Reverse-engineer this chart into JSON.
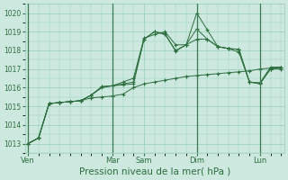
{
  "background_color": "#cce8df",
  "grid_color": "#99ccbb",
  "line_color": "#2d6e3e",
  "xlabel": "Pression niveau de la mer( hPa )",
  "xlabel_fontsize": 7.5,
  "ylim": [
    1012.5,
    1020.5
  ],
  "yticks": [
    1013,
    1014,
    1015,
    1016,
    1017,
    1018,
    1019,
    1020
  ],
  "xtick_labels": [
    "Ven",
    "Mar",
    "Sam",
    "Dim",
    "Lun"
  ],
  "xtick_positions": [
    0,
    8,
    11,
    16,
    22
  ],
  "vline_positions": [
    0,
    8,
    16,
    22
  ],
  "total_points": 25,
  "series": [
    {
      "x": [
        0,
        1,
        2,
        3,
        4,
        5,
        6,
        7,
        8,
        9,
        10,
        11,
        12,
        13,
        14,
        15,
        16,
        17,
        18,
        19,
        20,
        21,
        22,
        23,
        24
      ],
      "y": [
        1013.0,
        1013.3,
        1015.15,
        1015.2,
        1015.25,
        1015.3,
        1015.45,
        1015.5,
        1015.55,
        1015.65,
        1016.0,
        1016.2,
        1016.3,
        1016.4,
        1016.5,
        1016.6,
        1016.65,
        1016.7,
        1016.75,
        1016.8,
        1016.85,
        1016.9,
        1017.0,
        1017.05,
        1017.1
      ]
    },
    {
      "x": [
        0,
        1,
        2,
        3,
        4,
        5,
        6,
        7,
        8,
        9,
        10,
        11,
        12,
        13,
        14,
        15,
        16,
        17,
        18,
        19,
        20,
        21,
        22,
        23,
        24
      ],
      "y": [
        1013.0,
        1013.3,
        1015.15,
        1015.2,
        1015.25,
        1015.3,
        1015.6,
        1016.0,
        1016.1,
        1016.15,
        1016.2,
        1018.6,
        1019.0,
        1018.85,
        1018.0,
        1018.3,
        1019.15,
        1018.6,
        1018.2,
        1018.1,
        1017.9,
        1016.3,
        1016.2,
        1017.0,
        1017.1
      ]
    },
    {
      "x": [
        0,
        1,
        2,
        3,
        4,
        5,
        6,
        7,
        8,
        9,
        10,
        11,
        12,
        13,
        14,
        15,
        16,
        17,
        18,
        19,
        20,
        21,
        22,
        23,
        24
      ],
      "y": [
        1013.0,
        1013.3,
        1015.15,
        1015.2,
        1015.25,
        1015.3,
        1015.6,
        1016.05,
        1016.1,
        1016.2,
        1016.3,
        1018.6,
        1019.0,
        1018.9,
        1017.95,
        1018.3,
        1020.0,
        1019.1,
        1018.2,
        1018.1,
        1018.05,
        1016.3,
        1016.25,
        1017.1,
        1017.1
      ]
    },
    {
      "x": [
        0,
        1,
        2,
        3,
        4,
        5,
        6,
        7,
        8,
        9,
        10,
        11,
        12,
        13,
        14,
        15,
        16,
        17,
        18,
        19,
        20,
        21,
        22,
        23,
        24
      ],
      "y": [
        1013.0,
        1013.3,
        1015.15,
        1015.2,
        1015.25,
        1015.3,
        1015.6,
        1016.05,
        1016.1,
        1016.3,
        1016.5,
        1018.65,
        1018.85,
        1019.0,
        1018.3,
        1018.3,
        1018.6,
        1018.6,
        1018.2,
        1018.1,
        1018.05,
        1016.3,
        1016.25,
        1017.0,
        1017.0
      ]
    }
  ]
}
